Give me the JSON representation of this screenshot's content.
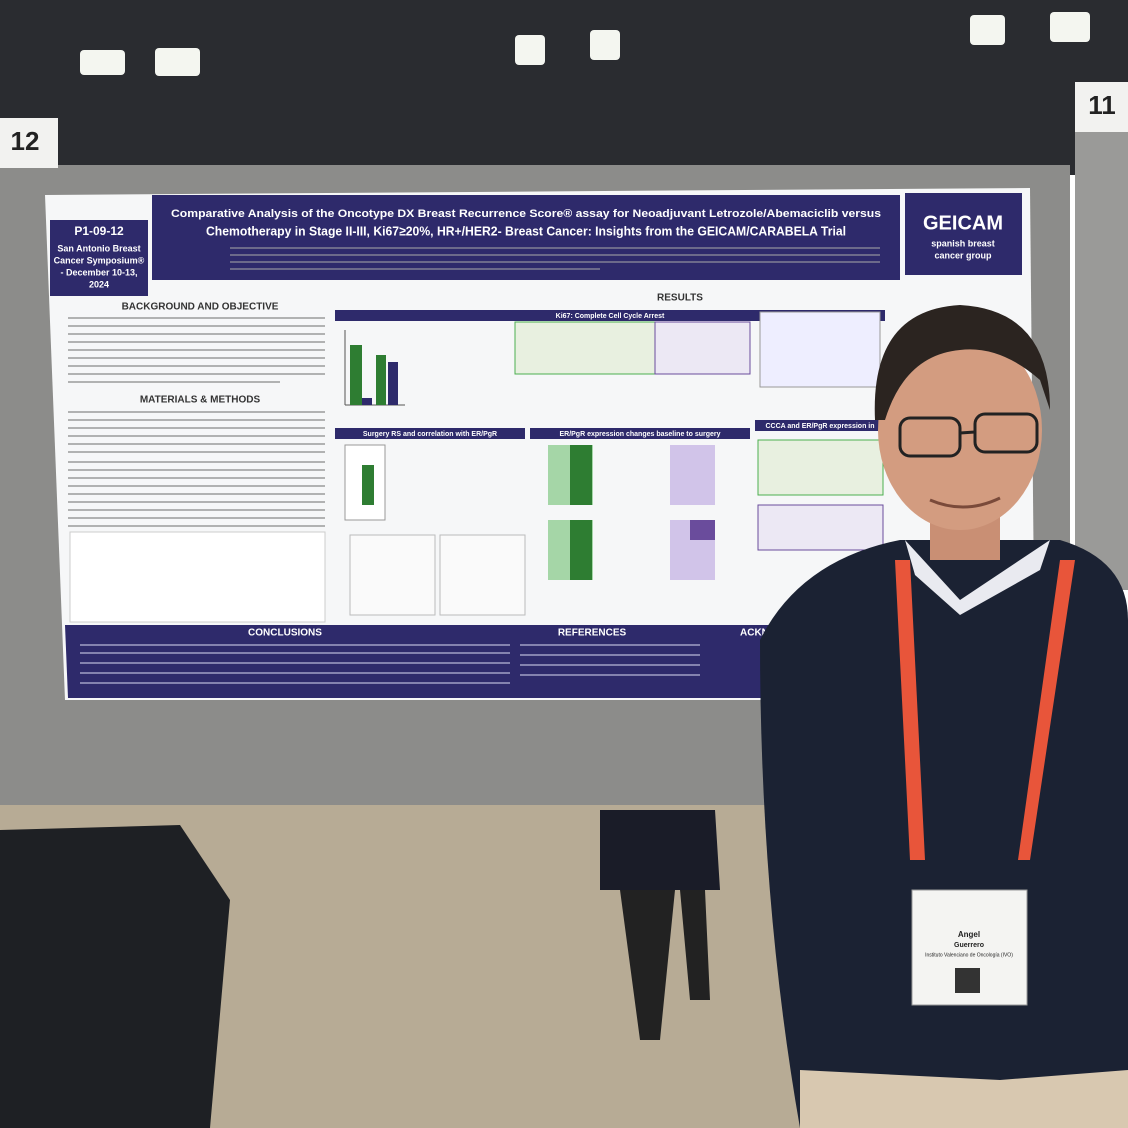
{
  "booth_numbers": [
    "12",
    "11"
  ],
  "poster": {
    "id": "P1-09-12",
    "conference_lines": [
      "San Antonio Breast",
      "Cancer Symposium®",
      "- December 10-13,",
      "2024"
    ],
    "title_lines": [
      "Comparative Analysis of the Oncotype DX Breast Recurrence Score® assay for Neoadjuvant Letrozole/Abemaciclib versus",
      "Chemotherapy in Stage II-III, Ki67≥20%, HR+/HER2- Breast Cancer: Insights from the GEICAM/CARABELA Trial"
    ],
    "logo": "GEICAM",
    "logo_subtitle_lines": [
      "spanish breast",
      "cancer group"
    ],
    "sections": {
      "background": "BACKGROUND AND OBJECTIVE",
      "methods": "MATERIALS & METHODS",
      "results": "RESULTS",
      "conclusions": "CONCLUSIONS",
      "references": "REFERENCES",
      "acknowledgements": "ACKNOWLEDG"
    },
    "results_panels": [
      "Ki67: Complete Cell Cycle Arrest",
      "Surgery RS and correlation with ER/PgR",
      "ER/PgR expression changes baseline to surgery",
      "CCCA and ER/PgR expression in"
    ]
  },
  "badge": {
    "name": "Angel",
    "surname": "Guerrero",
    "institution": "Instituto Valenciano de Oncología (IVO)"
  }
}
